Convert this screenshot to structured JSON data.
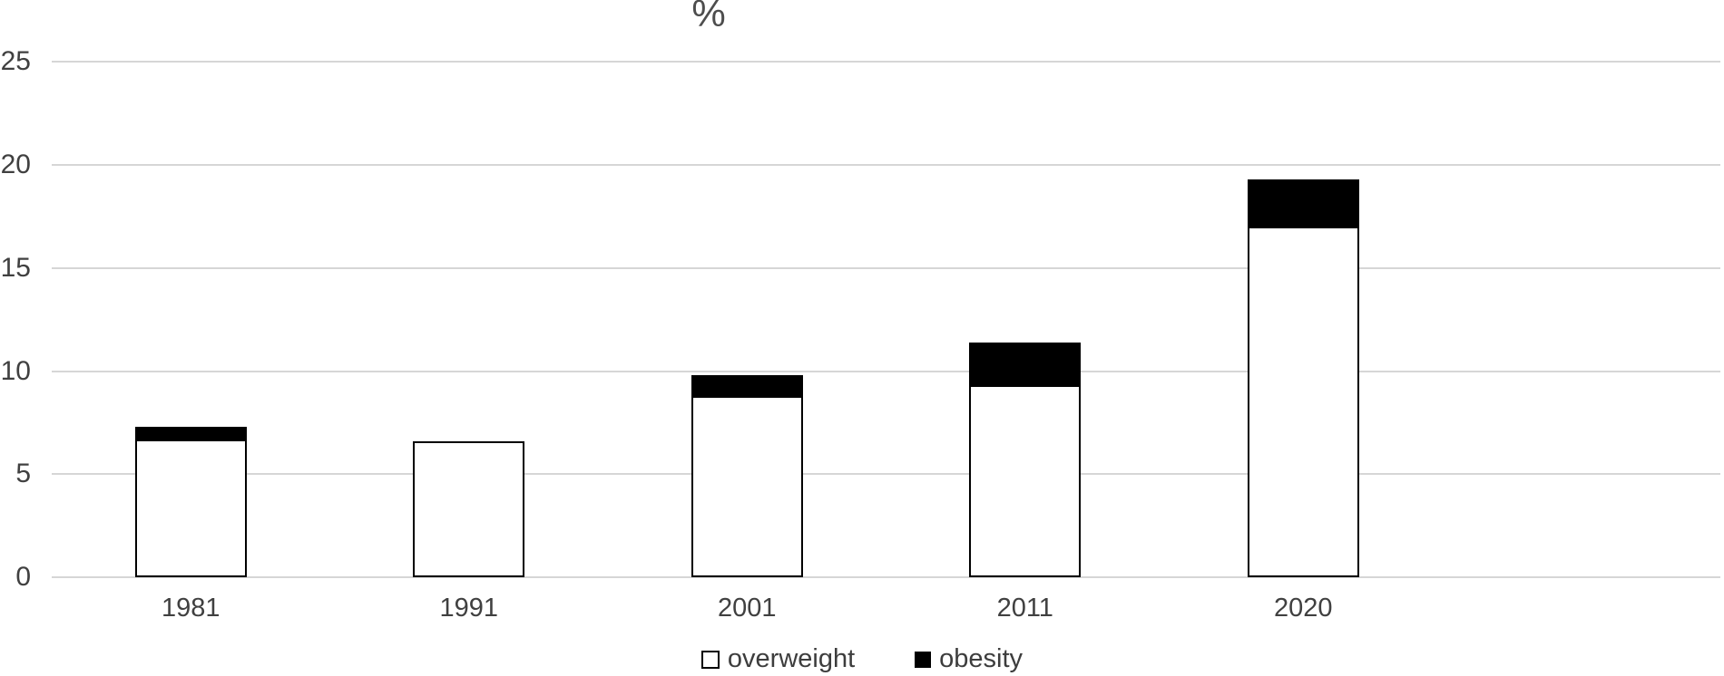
{
  "chart_data": {
    "type": "bar",
    "stacked": true,
    "title": "%",
    "categories": [
      "1981",
      "1991",
      "2001",
      "2011",
      "2020"
    ],
    "series": [
      {
        "name": "overweight",
        "color": "#ffffff",
        "values": [
          6.7,
          6.6,
          8.8,
          9.3,
          17.0
        ]
      },
      {
        "name": "obesity",
        "color": "#000000",
        "values": [
          0.6,
          0,
          1.0,
          2.1,
          2.3
        ]
      }
    ],
    "stack_totals": [
      7.3,
      6.6,
      9.8,
      11.4,
      19.3
    ],
    "ylim": [
      0,
      25
    ],
    "yticks": [
      0,
      5,
      10,
      15,
      20,
      25
    ],
    "grid": true,
    "legend_position": "bottom-center",
    "colors": {
      "text": "#404040",
      "title_text": "#4d4d4d",
      "gridline": "#d6d6d6",
      "bar_border": "#000000",
      "overweight_fill": "#ffffff",
      "obesity_fill": "#000000",
      "background": "#ffffff"
    }
  }
}
